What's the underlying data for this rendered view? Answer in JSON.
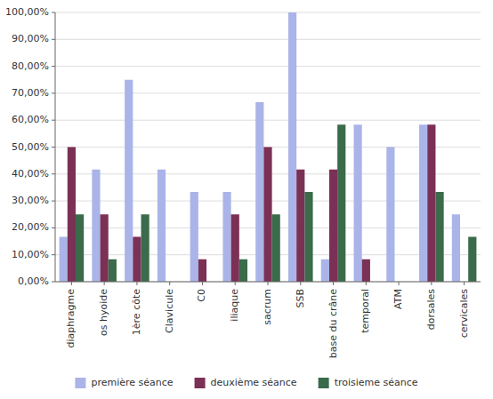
{
  "chart_data": {
    "type": "bar",
    "categories": [
      "diaphragme",
      "os hyoide",
      "1ère côte",
      "Clavicule",
      "C0",
      "iliaque",
      "sacrum",
      "SSB",
      "base du crâne",
      "temporal",
      "ATM",
      "dorsales",
      "cervicales"
    ],
    "series": [
      {
        "name": "première séance",
        "color": "#aab4e8",
        "values": [
          0.1667,
          0.4167,
          0.75,
          0.4167,
          0.3333,
          0.3333,
          0.6667,
          1.0,
          0.0833,
          0.5833,
          0.5,
          0.5833,
          0.25
        ]
      },
      {
        "name": "deuxième séance",
        "color": "#7b3055",
        "values": [
          0.5,
          0.25,
          0.1667,
          0.0,
          0.0833,
          0.25,
          0.5,
          0.4167,
          0.4167,
          0.0833,
          0.0,
          0.5833,
          0.0
        ]
      },
      {
        "name": "troisieme séance",
        "color": "#3a6b4a",
        "values": [
          0.25,
          0.0833,
          0.25,
          0.0,
          0.0,
          0.0833,
          0.25,
          0.3333,
          0.5833,
          0.0,
          0.0,
          0.3333,
          0.1667
        ]
      }
    ],
    "ylim": [
      0,
      1.0
    ],
    "yticks": [
      {
        "value": 0.0,
        "label": "0,00%"
      },
      {
        "value": 0.1,
        "label": "10,00%"
      },
      {
        "value": 0.2,
        "label": "20,00%"
      },
      {
        "value": 0.3,
        "label": "30,00%"
      },
      {
        "value": 0.4,
        "label": "40,00%"
      },
      {
        "value": 0.5,
        "label": "50,00%"
      },
      {
        "value": 0.6,
        "label": "60,00%"
      },
      {
        "value": 0.7,
        "label": "70,00%"
      },
      {
        "value": 0.8,
        "label": "80,00%"
      },
      {
        "value": 0.9,
        "label": "90,00%"
      },
      {
        "value": 1.0,
        "label": "100,00%"
      }
    ],
    "grid": true,
    "legend": "bottom"
  }
}
